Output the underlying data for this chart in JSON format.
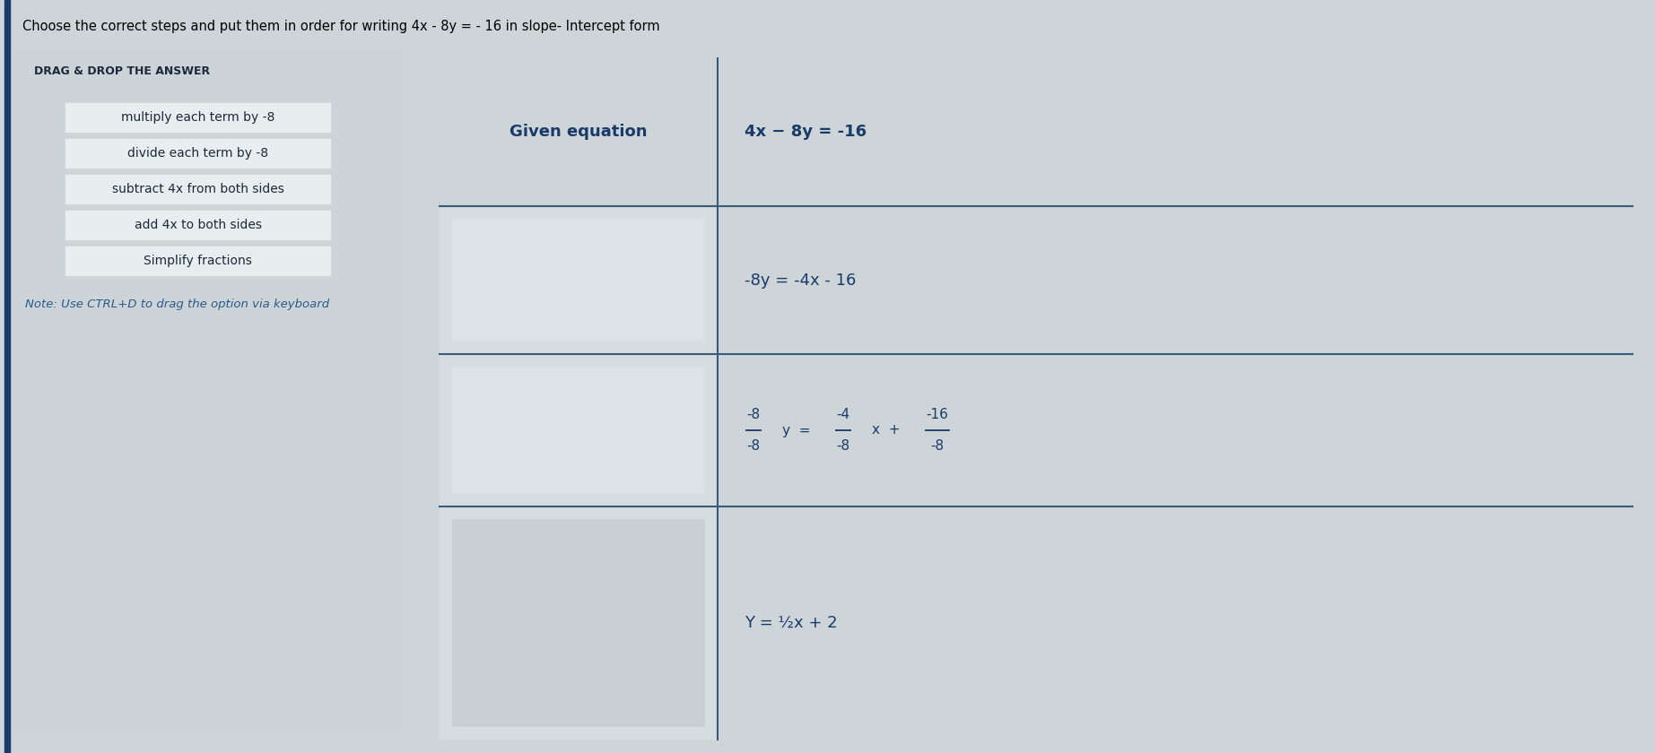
{
  "title": "Choose the correct steps and put them in order for writing 4x - 8y = - 16 in slope- Intercept form",
  "title_fontsize": 10.5,
  "drag_drop_label": "DRAG & DROP THE ANSWER",
  "drag_options": [
    "multiply each term by -8",
    "divide each term by -8",
    "subtract 4x from both sides",
    "add 4x to both sides",
    "Simplify fractions"
  ],
  "note_text": "Note: Use CTRL+D to drag the option via keyboard",
  "table_header_left": "Given equation",
  "table_header_right": "4x − 8y = -16",
  "table_row2_right": "-8y = -4x - 16",
  "table_row4_right": "Y = ½x + 2",
  "bg_color": "#cdd5d8",
  "left_panel_bg": "#ccd4d8",
  "left_panel_border": "#b0bec5",
  "option_box_bg": "#e8edf0",
  "option_box_border": "#9aabb4",
  "table_outer_bg": "#cdd5d8",
  "table_left_cell_bg": "#d0d8db",
  "table_right_cell_bg": "#e8edf0",
  "table_border_color": "#3a5a7a",
  "table_inner_cell_bg": "#d6dde0",
  "header_text_color": "#1a3a6a",
  "cell_text_color": "#1a3a6a",
  "left_bar_color": "#1a3a6a",
  "note_color": "#2a5a8a",
  "fig_width": 18.45,
  "fig_height": 8.4
}
